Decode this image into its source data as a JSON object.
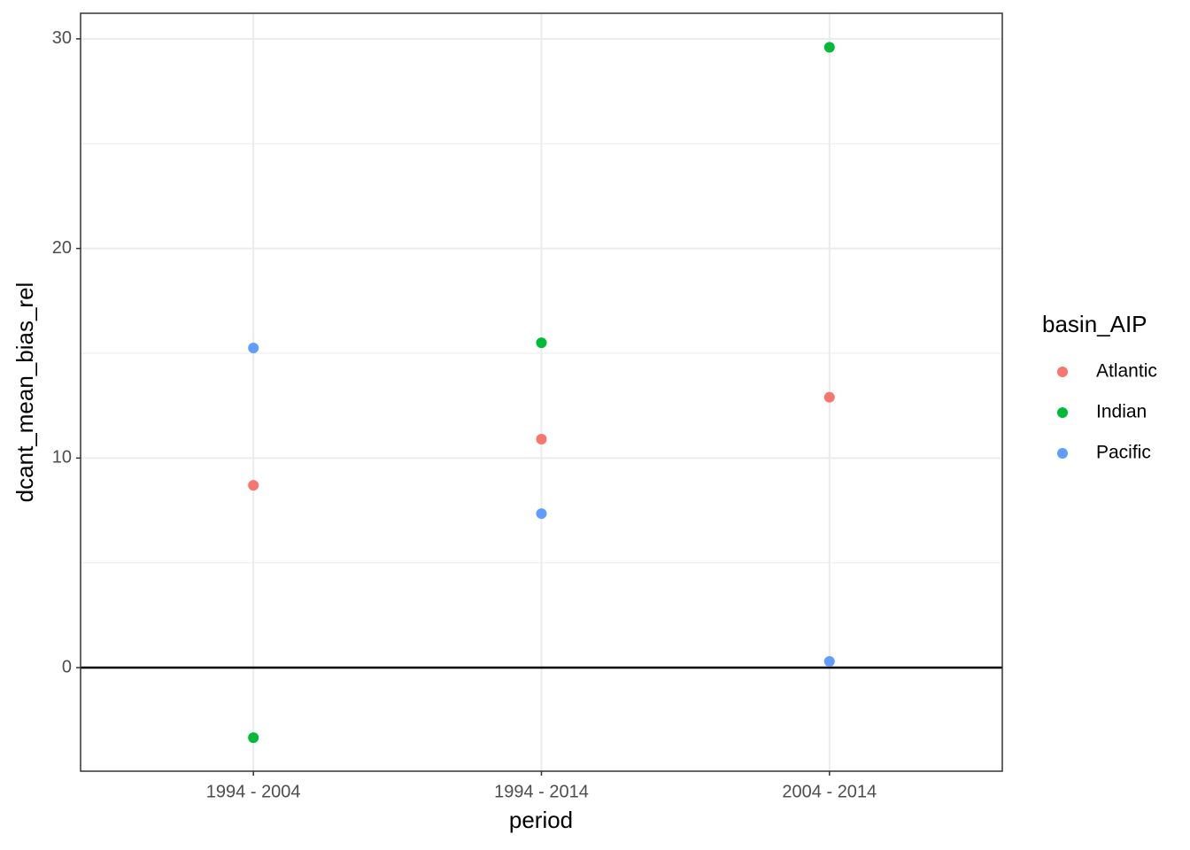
{
  "chart_data": {
    "type": "scatter",
    "x_label": "period",
    "y_label": "dcant_mean_bias_rel",
    "categories": [
      "1994 - 2004",
      "1994 - 2014",
      "2004 - 2014"
    ],
    "legend_title": "basin_AIP",
    "legend": "right",
    "series": [
      {
        "name": "Atlantic",
        "color": "#f8766d",
        "values": [
          8.7,
          10.9,
          12.9
        ]
      },
      {
        "name": "Indian",
        "color": "#00ba38",
        "values": [
          -3.34,
          15.5,
          29.6
        ]
      },
      {
        "name": "Pacific",
        "color": "#619cff",
        "values": [
          15.25,
          7.35,
          0.3
        ]
      }
    ],
    "ylim": [
      -4.94,
      31.22
    ],
    "yticks": [
      0,
      10,
      20,
      30
    ],
    "grid": true,
    "hline": 0
  }
}
